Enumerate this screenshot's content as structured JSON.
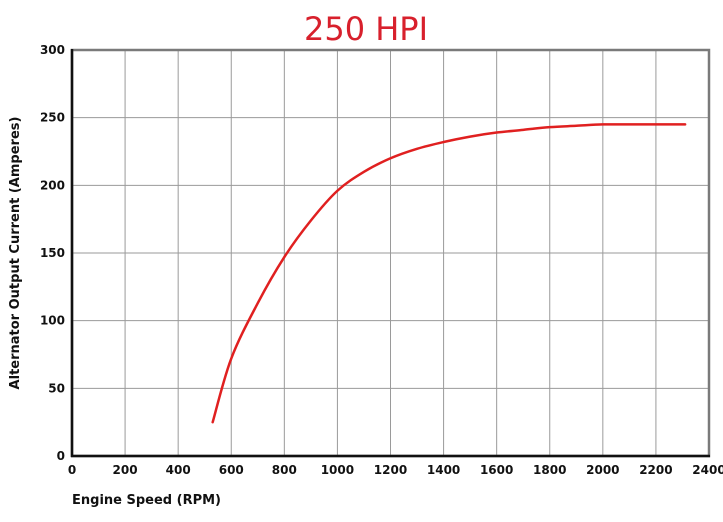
{
  "chart_data": {
    "type": "line",
    "title": "250 HPI",
    "xlabel": "Engine Speed (RPM)",
    "ylabel": "Alternator Output Current (Amperes)",
    "xlim": [
      0,
      2400
    ],
    "ylim": [
      0,
      300
    ],
    "x_ticks": [
      0,
      200,
      400,
      600,
      800,
      1000,
      1200,
      1400,
      1600,
      1800,
      2000,
      2200,
      2400
    ],
    "y_ticks": [
      0,
      50,
      100,
      150,
      200,
      250,
      300
    ],
    "grid": true,
    "legend": "none",
    "series": [
      {
        "color": "#e02020",
        "x": [
          530,
          600,
          700,
          800,
          900,
          1000,
          1100,
          1200,
          1300,
          1400,
          1500,
          1600,
          1700,
          1800,
          1900,
          2000,
          2100,
          2200,
          2310
        ],
        "y": [
          25,
          72,
          113,
          147,
          174,
          196,
          210,
          220,
          227,
          232,
          236,
          239,
          241,
          243,
          244,
          245,
          245,
          245,
          245
        ]
      }
    ],
    "colors": {
      "title": "#d8202c",
      "grid": "#9a9a9a",
      "frame": "#7a7a7a",
      "axis": "#111111"
    }
  }
}
